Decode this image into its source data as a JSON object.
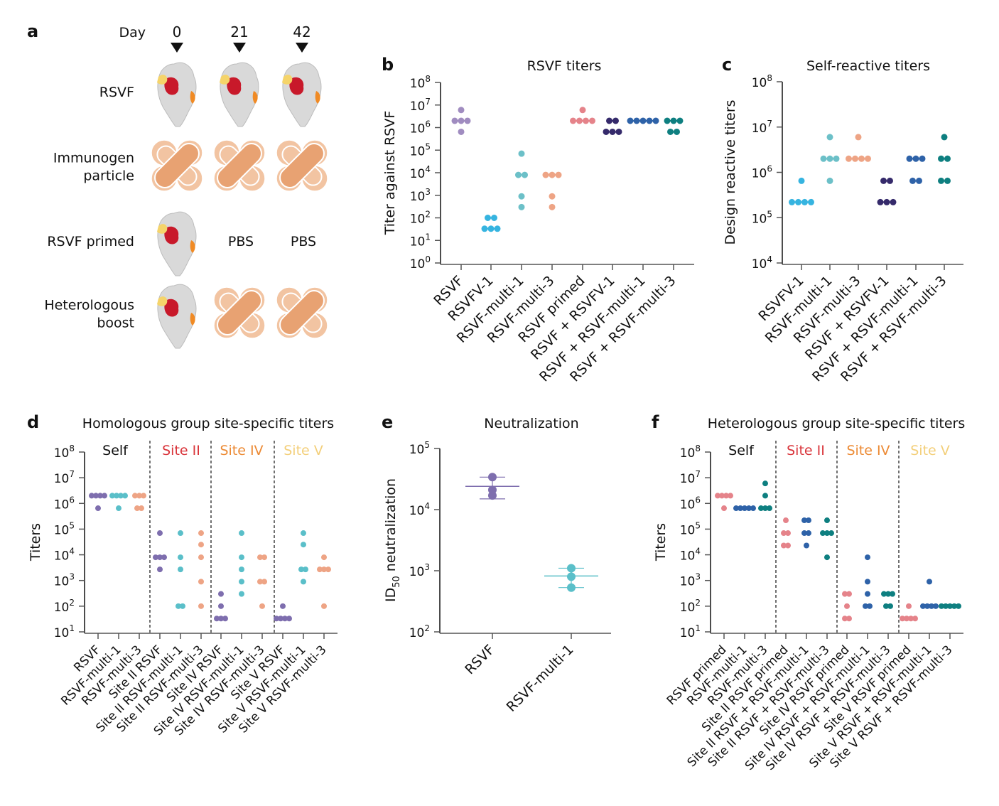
{
  "panel_a": {
    "letter": "a",
    "day_label": "Day",
    "days": [
      "0",
      "21",
      "42"
    ],
    "rows": [
      {
        "label_lines": [
          "RSVF"
        ],
        "items": [
          "protein",
          "protein",
          "protein"
        ]
      },
      {
        "label_lines": [
          "Immunogen",
          "particle"
        ],
        "items": [
          "particle",
          "particle",
          "particle"
        ]
      },
      {
        "label_lines": [
          "RSVF primed"
        ],
        "items": [
          "protein",
          "PBS",
          "PBS"
        ]
      },
      {
        "label_lines": [
          "Heterologous",
          "boost"
        ],
        "items": [
          "protein",
          "particle",
          "particle"
        ]
      }
    ],
    "pbs_text": "PBS",
    "colors": {
      "site_ii": "#c8192a",
      "site_iv": "#f08a24",
      "site_v": "#f5d46a",
      "protein": "#d9d9d9",
      "particle_dark": "#e8a272",
      "particle_light": "#f2c4a2"
    }
  },
  "chart_data": [
    {
      "id": "b",
      "letter": "b",
      "type": "scatter",
      "title": "RSVF titers",
      "xlabel": "",
      "ylabel": "Titer against RSVF",
      "yscale": "log",
      "ylim_exp": [
        0,
        8
      ],
      "categories": [
        "RSVF",
        "RSVFV-1",
        "RSVF-multi-1",
        "RSVF-multi-3",
        "RSVF primed",
        "RSVF + RSVFV-1",
        "RSVF + RSVF-multi-1",
        "RSVF + RSVF-multi-3"
      ],
      "colors": [
        "#a08cc0",
        "#36b4e0",
        "#6cc0c8",
        "#eea485",
        "#e5838a",
        "#352a6b",
        "#2e62a8",
        "#0e7f80"
      ],
      "series": [
        [
          6000000,
          2000000,
          2000000,
          2000000,
          650000
        ],
        [
          100,
          100,
          33,
          33,
          33
        ],
        [
          70000,
          8000,
          8000,
          900,
          300
        ],
        [
          8000,
          8000,
          8000,
          900,
          300
        ],
        [
          6000000,
          2000000,
          2000000,
          2000000,
          2000000
        ],
        [
          2000000,
          2000000,
          650000,
          650000,
          650000
        ],
        [
          2000000,
          2000000,
          2000000,
          2000000,
          2000000
        ],
        [
          2000000,
          2000000,
          2000000,
          650000,
          650000
        ]
      ]
    },
    {
      "id": "c",
      "letter": "c",
      "type": "scatter",
      "title": "Self-reactive titers",
      "xlabel": "",
      "ylabel": "Design reactive titers",
      "yscale": "log",
      "ylim_exp": [
        4,
        8
      ],
      "categories": [
        "RSVFV-1",
        "RSVF-multi-1",
        "RSVF-multi-3",
        "RSVF + RSVFV-1",
        "RSVF + RSVF-multi-1",
        "RSVF + RSVF-multi-3"
      ],
      "colors": [
        "#36b4e0",
        "#6cc0c8",
        "#eea485",
        "#352a6b",
        "#2e62a8",
        "#0e7f80"
      ],
      "series": [
        [
          650000,
          220000,
          220000,
          220000,
          220000
        ],
        [
          6000000,
          2000000,
          2000000,
          2000000,
          650000
        ],
        [
          6000000,
          2000000,
          2000000,
          2000000,
          2000000
        ],
        [
          650000,
          650000,
          220000,
          220000,
          220000
        ],
        [
          2000000,
          2000000,
          2000000,
          650000,
          650000
        ],
        [
          6000000,
          2000000,
          2000000,
          650000,
          650000
        ]
      ]
    },
    {
      "id": "d",
      "letter": "d",
      "type": "scatter",
      "title": "Homologous group site-specific titers",
      "xlabel": "",
      "ylabel": "Titers",
      "yscale": "log",
      "ylim_exp": [
        1,
        8
      ],
      "groups": [
        {
          "label": "Self",
          "color": "#111111"
        },
        {
          "label": "Site II",
          "color": "#d9343a"
        },
        {
          "label": "Site IV",
          "color": "#ec8a34"
        },
        {
          "label": "Site V",
          "color": "#f3cf7a"
        }
      ],
      "categories": [
        "RSVF",
        "RSVF-multi-1",
        "RSVF-multi-3",
        "Site II RSVF",
        "Site II RSVF-multi-1",
        "Site II RSVF-multi-3",
        "Site IV RSVF",
        "Site IV RSVF-multi-1",
        "Site IV RSVF-multi-3",
        "Site V RSVF",
        "Site V RSVF-multi-1",
        "Site V RSVF-multi-3"
      ],
      "colors": [
        "#7e6eae",
        "#5abfc9",
        "#eea485",
        "#7e6eae",
        "#5abfc9",
        "#eea485",
        "#7e6eae",
        "#5abfc9",
        "#eea485",
        "#7e6eae",
        "#5abfc9",
        "#eea485"
      ],
      "series": [
        [
          2000000,
          2000000,
          2000000,
          2000000,
          650000
        ],
        [
          2000000,
          2000000,
          2000000,
          2000000,
          650000
        ],
        [
          2000000,
          2000000,
          2000000,
          650000,
          650000
        ],
        [
          70000,
          8000,
          8000,
          8000,
          2700
        ],
        [
          70000,
          8000,
          2700,
          100,
          100
        ],
        [
          70000,
          25000,
          8000,
          900,
          100
        ],
        [
          300,
          100,
          33,
          33,
          33
        ],
        [
          70000,
          8000,
          2700,
          900,
          300
        ],
        [
          8000,
          8000,
          900,
          900,
          100
        ],
        [
          100,
          33,
          33,
          33,
          33
        ],
        [
          70000,
          25000,
          2700,
          2700,
          900
        ],
        [
          8000,
          2700,
          2700,
          2700,
          100
        ]
      ]
    },
    {
      "id": "e",
      "letter": "e",
      "type": "scatter",
      "title": "Neutralization",
      "xlabel": "",
      "ylabel": "ID50 neutralization",
      "yscale": "log",
      "ylim_exp": [
        2,
        5
      ],
      "categories": [
        "RSVF",
        "RSVF-multi-1"
      ],
      "colors": [
        "#7e6eae",
        "#5abfc9"
      ],
      "series": [
        [
          34000,
          21000,
          17000
        ],
        [
          1100,
          800,
          530
        ]
      ],
      "mean": [
        24000,
        820
      ],
      "error_low": [
        15000,
        530
      ],
      "error_high": [
        34000,
        1100
      ]
    },
    {
      "id": "f",
      "letter": "f",
      "type": "scatter",
      "title": "Heterologous group site-specific titers",
      "xlabel": "",
      "ylabel": "Titers",
      "yscale": "log",
      "ylim_exp": [
        1,
        8
      ],
      "groups": [
        {
          "label": "Self",
          "color": "#111111"
        },
        {
          "label": "Site II",
          "color": "#d9343a"
        },
        {
          "label": "Site IV",
          "color": "#ec8a34"
        },
        {
          "label": "Site V",
          "color": "#f3cf7a"
        }
      ],
      "categories": [
        "RSVF primed",
        "RSVF-multi-1",
        "RSVF-multi-3",
        "Site II RSVF primed",
        "Site II RSVF + RSVF-multi-1",
        "Site II RSVF + RSVF-multi-3",
        "Site IV RSVF primed",
        "Site IV RSVF + RSVF-multi-1",
        "Site IV RSVF + RSVF-multi-3",
        "Site V RSVF primed",
        "Site V RSVF + RSVF-multi-1",
        "Site V RSVF + RSVF-multi-3"
      ],
      "colors": [
        "#e5838a",
        "#2e62a8",
        "#0e7f80",
        "#e5838a",
        "#2e62a8",
        "#0e7f80",
        "#e5838a",
        "#2e62a8",
        "#0e7f80",
        "#e5838a",
        "#2e62a8",
        "#0e7f80"
      ],
      "series": [
        [
          2000000,
          2000000,
          2000000,
          2000000,
          650000
        ],
        [
          650000,
          650000,
          650000,
          650000,
          650000
        ],
        [
          6000000,
          2000000,
          650000,
          650000,
          650000
        ],
        [
          220000,
          70000,
          70000,
          23000,
          23000
        ],
        [
          220000,
          220000,
          70000,
          70000,
          23000
        ],
        [
          220000,
          70000,
          70000,
          70000,
          8000
        ],
        [
          300,
          300,
          100,
          33,
          33
        ],
        [
          8000,
          900,
          300,
          100,
          100
        ],
        [
          300,
          300,
          300,
          100,
          100
        ],
        [
          100,
          33,
          33,
          33,
          33
        ],
        [
          900,
          100,
          100,
          100,
          100
        ],
        [
          100,
          100,
          100,
          100,
          100
        ]
      ]
    }
  ]
}
